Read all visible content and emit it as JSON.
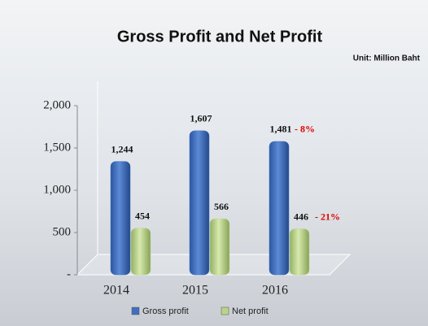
{
  "chart_data": {
    "type": "bar",
    "title": "Gross Profit and Net Profit",
    "subtitle": "Unit: Million Baht",
    "categories": [
      "2014",
      "2015",
      "2016"
    ],
    "series": [
      {
        "name": "Gross profit",
        "color": "#3f6fc0",
        "values": [
          1244,
          1607,
          1481
        ],
        "value_labels": [
          "1,244",
          "1,607",
          "1,481"
        ]
      },
      {
        "name": "Net profit",
        "color": "#b9d48a",
        "values": [
          454,
          566,
          446
        ]
      }
    ],
    "annotations": [
      "- 8%",
      "- 21%"
    ],
    "ylim": [
      0,
      2000
    ],
    "yticks": [
      {
        "value": 0,
        "label": "-"
      },
      500,
      {
        "value": 1000,
        "label": "1,000"
      },
      {
        "value": 1500,
        "label": "1,500"
      },
      {
        "value": 2000,
        "label": "2,000"
      }
    ],
    "legend": "bottom"
  }
}
